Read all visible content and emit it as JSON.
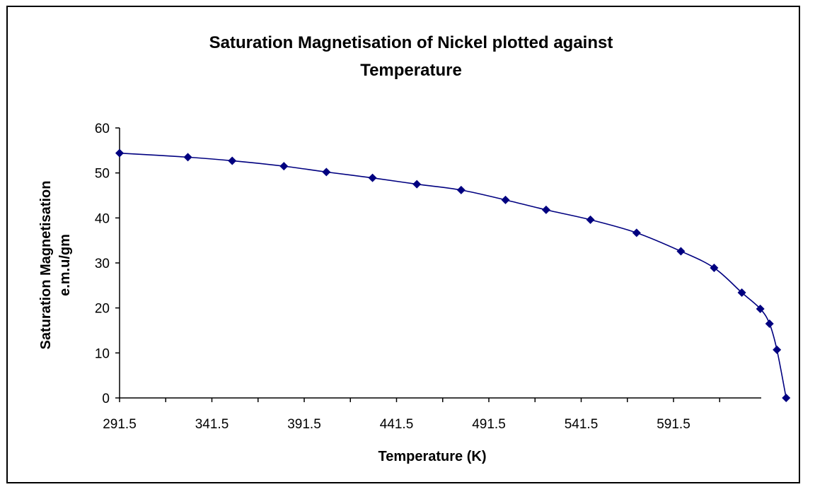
{
  "chart_data": {
    "type": "line",
    "title_lines": [
      "Saturation Magnetisation of Nickel plotted against",
      "Temperature"
    ],
    "xlabel": "Temperature (K)",
    "ylabel_lines": [
      "Saturation Magnetisation",
      "e.m.u/gm"
    ],
    "xlim": [
      291.5,
      641.5
    ],
    "ylim": [
      0,
      60
    ],
    "x_ticks": [
      291.5,
      341.5,
      391.5,
      441.5,
      491.5,
      541.5,
      591.5
    ],
    "x_tick_labels": [
      "291.5",
      "341.5",
      "391.5",
      "441.5",
      "491.5",
      "541.5",
      "591.5"
    ],
    "y_ticks": [
      0,
      10,
      20,
      30,
      40,
      50,
      60
    ],
    "y_tick_labels": [
      "0",
      "10",
      "20",
      "30",
      "40",
      "50",
      "60"
    ],
    "grid": false,
    "legend": "none",
    "line_color": "#000080",
    "marker": "diamond",
    "series": [
      {
        "x": [
          291.5,
          328.5,
          352.5,
          380.5,
          403.5,
          428.5,
          452.5,
          476.5,
          500.5,
          522.5,
          546.5,
          571.5,
          595.5,
          613.5,
          628.5,
          638.5,
          643.5,
          647.5,
          652.5
        ],
        "y": [
          54.4,
          53.5,
          52.7,
          51.5,
          50.2,
          48.9,
          47.5,
          46.2,
          44.0,
          41.8,
          39.6,
          36.7,
          32.6,
          28.9,
          23.4,
          19.8,
          16.5,
          10.7,
          0.0
        ]
      }
    ]
  }
}
